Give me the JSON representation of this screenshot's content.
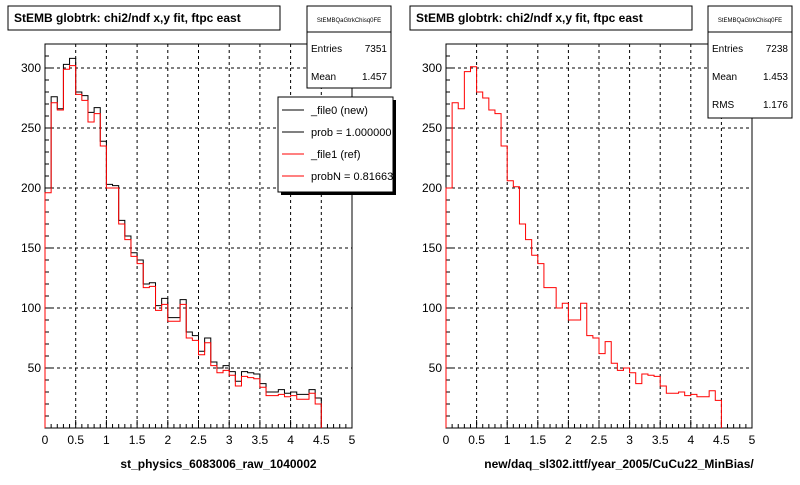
{
  "footer_text": "",
  "colors": {
    "new": "#000000",
    "ref": "#ff0000",
    "grid": "#000000",
    "frame": "#000000"
  },
  "chart_data": [
    {
      "type": "histogram",
      "title": "StEMB globtrk: chi2/ndf x,y fit, ftpc east",
      "xlabel": "st_physics_6083006_raw_1040002",
      "ylabel": "",
      "xlim": [
        0,
        5
      ],
      "ylim": [
        0,
        320
      ],
      "xticks": [
        0,
        0.5,
        1,
        1.5,
        2,
        2.5,
        3,
        3.5,
        4,
        4.5,
        5
      ],
      "xtick_labels": [
        "0",
        "0.5",
        "1",
        "1.5",
        "2",
        "2.5",
        "3",
        "3.5",
        "4",
        "4.5",
        "5"
      ],
      "yticks": [
        50,
        100,
        150,
        200,
        250,
        300
      ],
      "ytick_labels": [
        "50",
        "100",
        "150",
        "200",
        "250",
        "300"
      ],
      "grid": true,
      "stats": {
        "name": "StEMBQaGtrkChisq0FE",
        "rows": [
          {
            "label": "Entries",
            "value": "7351"
          },
          {
            "label": "Mean",
            "value": "1.457"
          }
        ]
      },
      "legend": {
        "placement": "top-right",
        "entries": [
          {
            "label": "_file0 (new)",
            "color": "#000000"
          },
          {
            "label": "prob = 1.000000",
            "color": "#000000"
          },
          {
            "label": "_file1 (ref)",
            "color": "#ff0000"
          },
          {
            "label": "probN = 0.816632",
            "color": "#ff0000"
          }
        ]
      },
      "bin_width": 0.1,
      "series": [
        {
          "name": "_file0 (new)",
          "color": "#000000",
          "values": [
            200,
            276,
            266,
            303,
            308,
            280,
            277,
            263,
            267,
            239,
            203,
            202,
            173,
            160,
            146,
            140,
            120,
            121,
            102,
            108,
            92,
            92,
            107,
            80,
            77,
            64,
            75,
            55,
            50,
            52,
            47,
            39,
            47,
            46,
            45,
            37,
            30,
            30,
            32,
            29,
            30,
            28,
            28,
            32,
            25
          ]
        },
        {
          "name": "_file1 (ref)",
          "color": "#ff0000",
          "values": [
            196,
            271,
            265,
            299,
            302,
            278,
            273,
            255,
            262,
            235,
            200,
            200,
            170,
            157,
            143,
            137,
            117,
            118,
            98,
            103,
            89,
            89,
            103,
            75,
            73,
            61,
            71,
            52,
            46,
            48,
            44,
            35,
            43,
            42,
            41,
            34,
            27,
            27,
            28,
            26,
            27,
            24,
            24,
            29,
            20
          ]
        }
      ]
    },
    {
      "type": "histogram",
      "title": "StEMB globtrk: chi2/ndf x,y fit, ftpc east",
      "xlabel": "new/daq_sl302.ittf/year_2005/CuCu22_MinBias/",
      "ylabel": "",
      "xlim": [
        0,
        5
      ],
      "ylim": [
        0,
        320
      ],
      "xticks": [
        0,
        0.5,
        1,
        1.5,
        2,
        2.5,
        3,
        3.5,
        4,
        4.5,
        5
      ],
      "xtick_labels": [
        "0",
        "0.5",
        "1",
        "1.5",
        "2",
        "2.5",
        "3",
        "3.5",
        "4",
        "4.5",
        "5"
      ],
      "yticks": [
        50,
        100,
        150,
        200,
        250,
        300
      ],
      "ytick_labels": [
        "50",
        "100",
        "150",
        "200",
        "250",
        "300"
      ],
      "grid": true,
      "stats": {
        "name": "StEMBQaGtrkChisq0FE",
        "rows": [
          {
            "label": "Entries",
            "value": "7238"
          },
          {
            "label": "Mean",
            "value": "1.453"
          },
          {
            "label": "RMS",
            "value": "1.176"
          }
        ]
      },
      "bin_width": 0.1,
      "series": [
        {
          "name": "",
          "color": "#ff0000",
          "values": [
            200,
            271,
            266,
            297,
            301,
            280,
            275,
            265,
            262,
            235,
            206,
            201,
            170,
            157,
            144,
            137,
            117,
            117,
            100,
            104,
            90,
            90,
            104,
            77,
            75,
            62,
            72,
            54,
            48,
            50,
            46,
            37,
            45,
            44,
            43,
            35,
            29,
            29,
            30,
            27,
            28,
            26,
            26,
            31,
            23
          ]
        }
      ]
    }
  ]
}
